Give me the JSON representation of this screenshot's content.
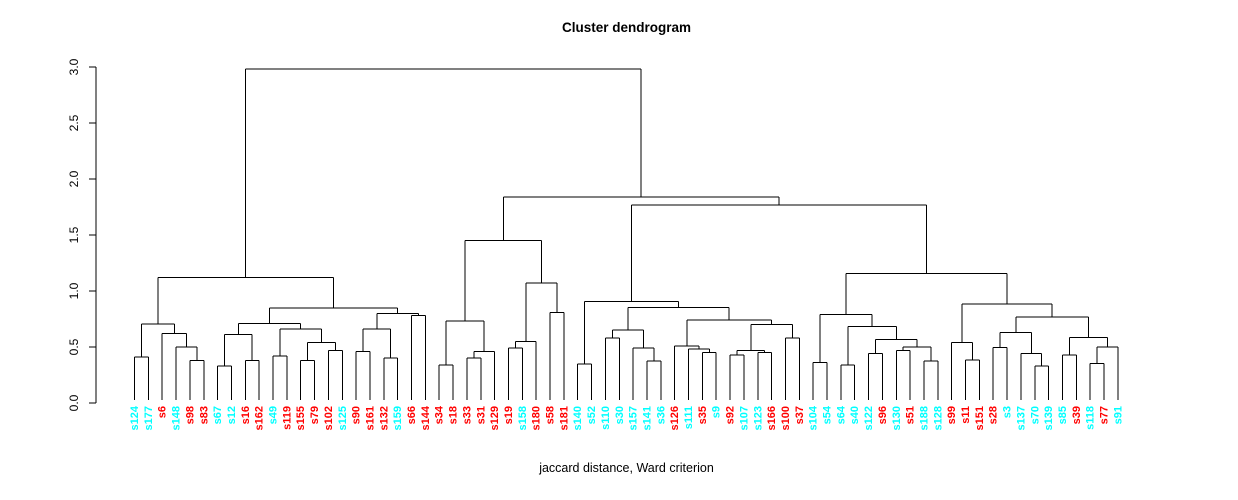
{
  "chart_data": {
    "type": "dendrogram",
    "title": "Cluster dendrogram",
    "xlabel": "jaccard distance, Ward criterion",
    "ylabel": "",
    "ylim": [
      0.0,
      3.0
    ],
    "yticks": [
      0.0,
      0.5,
      1.0,
      1.5,
      2.0,
      2.5,
      3.0
    ],
    "grid": "off",
    "line_color": "#000000",
    "label_colors": {
      "cyan": "#00FFFF",
      "red": "#FF0000"
    },
    "leaves": [
      {
        "label": "s124",
        "color": "cyan"
      },
      {
        "label": "s177",
        "color": "cyan"
      },
      {
        "label": "s6",
        "color": "red"
      },
      {
        "label": "s148",
        "color": "cyan"
      },
      {
        "label": "s98",
        "color": "red"
      },
      {
        "label": "s83",
        "color": "red"
      },
      {
        "label": "s67",
        "color": "cyan"
      },
      {
        "label": "s12",
        "color": "cyan"
      },
      {
        "label": "s16",
        "color": "red"
      },
      {
        "label": "s162",
        "color": "red"
      },
      {
        "label": "s49",
        "color": "cyan"
      },
      {
        "label": "s119",
        "color": "red"
      },
      {
        "label": "s155",
        "color": "red"
      },
      {
        "label": "s79",
        "color": "red"
      },
      {
        "label": "s102",
        "color": "red"
      },
      {
        "label": "s125",
        "color": "cyan"
      },
      {
        "label": "s90",
        "color": "red"
      },
      {
        "label": "s161",
        "color": "red"
      },
      {
        "label": "s132",
        "color": "red"
      },
      {
        "label": "s159",
        "color": "cyan"
      },
      {
        "label": "s66",
        "color": "red"
      },
      {
        "label": "s144",
        "color": "red"
      },
      {
        "label": "s34",
        "color": "red"
      },
      {
        "label": "s18",
        "color": "red"
      },
      {
        "label": "s33",
        "color": "red"
      },
      {
        "label": "s31",
        "color": "red"
      },
      {
        "label": "s129",
        "color": "red"
      },
      {
        "label": "s19",
        "color": "red"
      },
      {
        "label": "s158",
        "color": "cyan"
      },
      {
        "label": "s180",
        "color": "red"
      },
      {
        "label": "s58",
        "color": "red"
      },
      {
        "label": "s181",
        "color": "red"
      },
      {
        "label": "s140",
        "color": "cyan"
      },
      {
        "label": "s52",
        "color": "cyan"
      },
      {
        "label": "s110",
        "color": "cyan"
      },
      {
        "label": "s30",
        "color": "cyan"
      },
      {
        "label": "s157",
        "color": "cyan"
      },
      {
        "label": "s141",
        "color": "cyan"
      },
      {
        "label": "s36",
        "color": "cyan"
      },
      {
        "label": "s126",
        "color": "red"
      },
      {
        "label": "s111",
        "color": "cyan"
      },
      {
        "label": "s35",
        "color": "red"
      },
      {
        "label": "s9",
        "color": "cyan"
      },
      {
        "label": "s92",
        "color": "red"
      },
      {
        "label": "s107",
        "color": "cyan"
      },
      {
        "label": "s123",
        "color": "cyan"
      },
      {
        "label": "s166",
        "color": "red"
      },
      {
        "label": "s100",
        "color": "red"
      },
      {
        "label": "s37",
        "color": "red"
      },
      {
        "label": "s104",
        "color": "cyan"
      },
      {
        "label": "s54",
        "color": "cyan"
      },
      {
        "label": "s64",
        "color": "cyan"
      },
      {
        "label": "s40",
        "color": "cyan"
      },
      {
        "label": "s122",
        "color": "cyan"
      },
      {
        "label": "s96",
        "color": "red"
      },
      {
        "label": "s130",
        "color": "cyan"
      },
      {
        "label": "s51",
        "color": "red"
      },
      {
        "label": "s188",
        "color": "cyan"
      },
      {
        "label": "s128",
        "color": "cyan"
      },
      {
        "label": "s99",
        "color": "red"
      },
      {
        "label": "s11",
        "color": "red"
      },
      {
        "label": "s151",
        "color": "red"
      },
      {
        "label": "s28",
        "color": "red"
      },
      {
        "label": "s3",
        "color": "cyan"
      },
      {
        "label": "s137",
        "color": "cyan"
      },
      {
        "label": "s70",
        "color": "cyan"
      },
      {
        "label": "s139",
        "color": "cyan"
      },
      {
        "label": "s85",
        "color": "cyan"
      },
      {
        "label": "s39",
        "color": "red"
      },
      {
        "label": "s118",
        "color": "cyan"
      },
      {
        "label": "s77",
        "color": "red"
      },
      {
        "label": "s91",
        "color": "cyan"
      }
    ],
    "tree": {
      "h": 2.98,
      "c": [
        {
          "h": 1.12,
          "c": [
            {
              "h": 0.705,
              "c": [
                {
                  "h": 0.41,
                  "c": [
                    "s124",
                    "s177"
                  ]
                },
                {
                  "h": 0.62,
                  "c": [
                    "s6",
                    {
                      "h": 0.5,
                      "c": [
                        "s148",
                        {
                          "h": 0.38,
                          "c": [
                            "s98",
                            "s83"
                          ]
                        }
                      ]
                    }
                  ]
                }
              ]
            },
            {
              "h": 0.85,
              "c": [
                {
                  "h": 0.71,
                  "c": [
                    {
                      "h": 0.61,
                      "c": [
                        {
                          "h": 0.33,
                          "c": [
                            "s67",
                            "s12"
                          ]
                        },
                        {
                          "h": 0.38,
                          "c": [
                            "s16",
                            "s162"
                          ]
                        }
                      ]
                    },
                    {
                      "h": 0.66,
                      "c": [
                        {
                          "h": 0.42,
                          "c": [
                            "s49",
                            "s119"
                          ]
                        },
                        {
                          "h": 0.54,
                          "c": [
                            {
                              "h": 0.38,
                              "c": [
                                "s155",
                                "s79"
                              ]
                            },
                            {
                              "h": 0.47,
                              "c": [
                                "s102",
                                "s125"
                              ]
                            }
                          ]
                        }
                      ]
                    }
                  ]
                },
                {
                  "h": 0.8,
                  "c": [
                    {
                      "h": 0.66,
                      "c": [
                        {
                          "h": 0.46,
                          "c": [
                            "s90",
                            "s161"
                          ]
                        },
                        {
                          "h": 0.4,
                          "c": [
                            "s132",
                            "s159"
                          ]
                        }
                      ]
                    },
                    {
                      "h": 0.78,
                      "c": [
                        "s66",
                        "s144"
                      ]
                    }
                  ]
                }
              ]
            }
          ]
        },
        {
          "h": 1.84,
          "c": [
            {
              "h": 1.45,
              "c": [
                {
                  "h": 0.73,
                  "c": [
                    {
                      "h": 0.34,
                      "c": [
                        "s34",
                        "s18"
                      ]
                    },
                    {
                      "h": 0.46,
                      "c": [
                        {
                          "h": 0.4,
                          "c": [
                            "s33",
                            "s31"
                          ]
                        },
                        "s129"
                      ]
                    }
                  ]
                },
                {
                  "h": 1.07,
                  "c": [
                    {
                      "h": 0.55,
                      "c": [
                        {
                          "h": 0.49,
                          "c": [
                            "s19",
                            "s158"
                          ]
                        },
                        "s180"
                      ]
                    },
                    {
                      "h": 0.81,
                      "c": [
                        "s58",
                        "s181"
                      ]
                    }
                  ]
                }
              ]
            },
            {
              "h": 1.77,
              "c": [
                {
                  "h": 0.905,
                  "c": [
                    {
                      "h": 0.35,
                      "c": [
                        "s140",
                        "s52"
                      ]
                    },
                    {
                      "h": 0.851,
                      "c": [
                        {
                          "h": 0.65,
                          "c": [
                            {
                              "h": 0.58,
                              "c": [
                                "s110",
                                "s30"
                              ]
                            },
                            {
                              "h": 0.49,
                              "c": [
                                "s157",
                                {
                                  "h": 0.375,
                                  "c": [
                                    "s141",
                                    "s36"
                                  ]
                                }
                              ]
                            }
                          ]
                        },
                        {
                          "h": 0.741,
                          "c": [
                            {
                              "h": 0.51,
                              "c": [
                                "s126",
                                {
                                  "h": 0.48,
                                  "c": [
                                    "s111",
                                    {
                                      "h": 0.45,
                                      "c": [
                                        "s35",
                                        "s9"
                                      ]
                                    }
                                  ]
                                }
                              ]
                            },
                            {
                              "h": 0.7,
                              "c": [
                                {
                                  "h": 0.47,
                                  "c": [
                                    {
                                      "h": 0.43,
                                      "c": [
                                        "s92",
                                        "s107"
                                      ]
                                    },
                                    {
                                      "h": 0.45,
                                      "c": [
                                        "s123",
                                        "s166"
                                      ]
                                    }
                                  ]
                                },
                                {
                                  "h": 0.58,
                                  "c": [
                                    "s100",
                                    "s37"
                                  ]
                                }
                              ]
                            }
                          ]
                        }
                      ]
                    }
                  ]
                },
                {
                  "h": 1.158,
                  "c": [
                    {
                      "h": 0.79,
                      "c": [
                        {
                          "h": 0.36,
                          "c": [
                            "s104",
                            "s54"
                          ]
                        },
                        {
                          "h": 0.681,
                          "c": [
                            {
                              "h": 0.34,
                              "c": [
                                "s64",
                                "s40"
                              ]
                            },
                            {
                              "h": 0.569,
                              "c": [
                                {
                                  "h": 0.44,
                                  "c": [
                                    "s122",
                                    "s96"
                                  ]
                                },
                                {
                                  "h": 0.5,
                                  "c": [
                                    {
                                      "h": 0.467,
                                      "c": [
                                        "s130",
                                        "s51"
                                      ]
                                    },
                                    {
                                      "h": 0.375,
                                      "c": [
                                        "s188",
                                        "s128"
                                      ]
                                    }
                                  ]
                                }
                              ]
                            }
                          ]
                        }
                      ]
                    },
                    {
                      "h": 0.884,
                      "c": [
                        {
                          "h": 0.538,
                          "c": [
                            "s99",
                            {
                              "h": 0.384,
                              "c": [
                                "s11",
                                "s151"
                              ]
                            }
                          ]
                        },
                        {
                          "h": 0.77,
                          "c": [
                            {
                              "h": 0.628,
                              "c": [
                                {
                                  "h": 0.497,
                                  "c": [
                                    "s28",
                                    "s3"
                                  ]
                                },
                                {
                                  "h": 0.44,
                                  "c": [
                                    "s137",
                                    {
                                      "h": 0.33,
                                      "c": [
                                        "s70",
                                        "s139"
                                      ]
                                    }
                                  ]
                                }
                              ]
                            },
                            {
                              "h": 0.586,
                              "c": [
                                {
                                  "h": 0.43,
                                  "c": [
                                    "s85",
                                    "s39"
                                  ]
                                },
                                {
                                  "h": 0.5,
                                  "c": [
                                    {
                                      "h": 0.354,
                                      "c": [
                                        "s118",
                                        "s77"
                                      ]
                                    },
                                    "s91"
                                  ]
                                }
                              ]
                            }
                          ]
                        }
                      ]
                    }
                  ]
                }
              ]
            }
          ]
        }
      ]
    }
  }
}
